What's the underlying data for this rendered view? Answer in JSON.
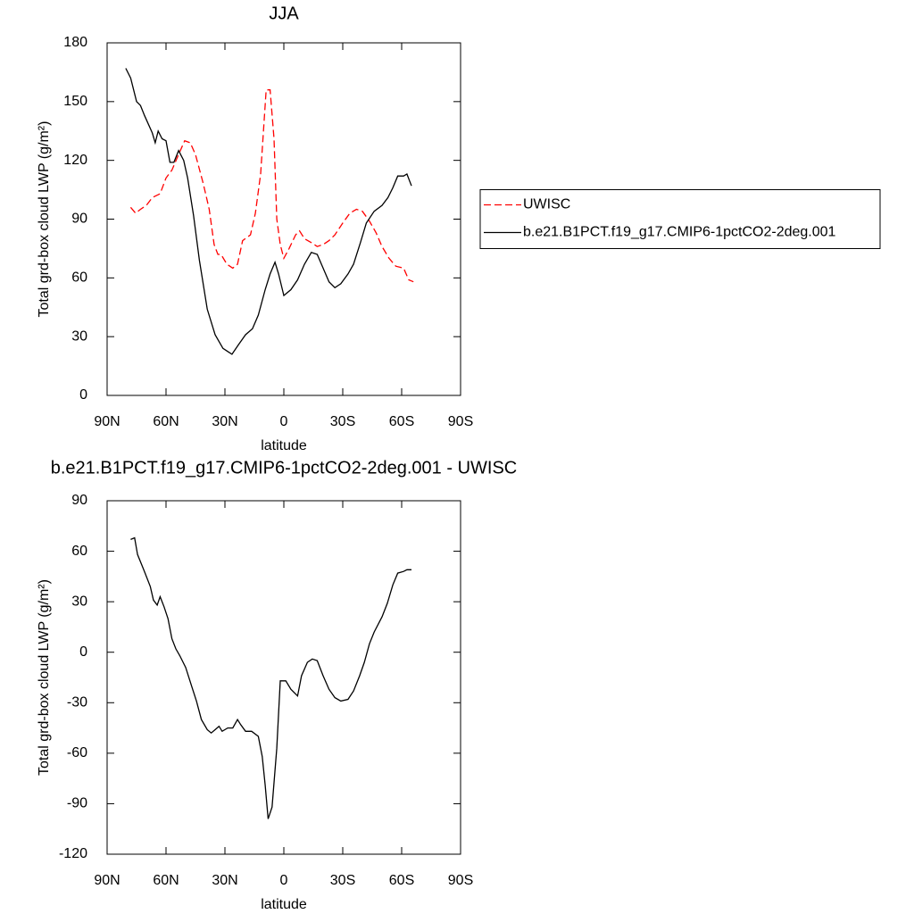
{
  "chart_data": [
    {
      "type": "line",
      "title": "JJA",
      "xlabel": "latitude",
      "ylabel": "Total grd-box cloud LWP (g/m²)",
      "xlim": [
        90,
        -90
      ],
      "xticks": [
        {
          "value": 90,
          "label": "90N"
        },
        {
          "value": 60,
          "label": "60N"
        },
        {
          "value": 30,
          "label": "30N"
        },
        0,
        {
          "value": -30,
          "label": "30S"
        },
        {
          "value": -60,
          "label": "60S"
        },
        {
          "value": -90,
          "label": "90S"
        }
      ],
      "ylim": [
        0,
        180
      ],
      "yticks": [
        0,
        30,
        60,
        90,
        120,
        150,
        180
      ],
      "legend": "right",
      "series": [
        {
          "name": "UWISC",
          "color": "#ff0000",
          "dash": true,
          "x": [
            78,
            75.5,
            73,
            70,
            67,
            63,
            60,
            57,
            53.6,
            50.5,
            47.7,
            45,
            41,
            38,
            35.5,
            33.6,
            32,
            29,
            26,
            23.6,
            21,
            17,
            14.5,
            11.8,
            9,
            7,
            5,
            3.6,
            1.8,
            0,
            -2.7,
            -6,
            -8,
            -10.5,
            -14,
            -17,
            -20,
            -23,
            -26,
            -30,
            -33.6,
            -37,
            -40,
            -43.6,
            -47,
            -50,
            -53.6,
            -57,
            -61,
            -63.6,
            -66
          ],
          "values": [
            96,
            93,
            95,
            97,
            101,
            103,
            111,
            115,
            123,
            130,
            129,
            123,
            108,
            95,
            77,
            72,
            72,
            67,
            65,
            67,
            79,
            82,
            93,
            113,
            156,
            156,
            131,
            90,
            77,
            70,
            75,
            82,
            84,
            80,
            78,
            76,
            77,
            79,
            82,
            88,
            93,
            95,
            94,
            89,
            83,
            76,
            70,
            66,
            65,
            59,
            58
          ]
        },
        {
          "name": "b.e21.B1PCT.f19_g17.CMIP6-1pctCO2-2deg.001",
          "color": "#000000",
          "dash": false,
          "x": [
            80.5,
            78,
            75,
            73,
            71,
            67,
            65.5,
            64,
            62,
            60,
            58,
            56,
            53.6,
            51,
            49,
            46,
            43,
            39,
            35,
            31,
            26.4,
            23,
            19.5,
            16,
            13,
            9.5,
            7,
            4.5,
            2.7,
            0,
            -3.6,
            -7,
            -10.5,
            -14,
            -17,
            -20,
            -23,
            -26,
            -29,
            -32.7,
            -35.5,
            -39,
            -42,
            -46,
            -50,
            -53,
            -55.5,
            -58,
            -61,
            -62.7,
            -65
          ],
          "values": [
            167,
            162,
            150,
            148,
            143,
            134,
            129,
            135,
            131,
            130,
            119,
            119,
            125,
            120,
            111,
            92,
            69,
            44,
            31,
            24,
            21,
            26,
            31,
            34,
            41,
            54,
            62,
            68,
            62,
            51,
            54,
            59,
            67,
            73,
            72,
            65,
            58,
            55,
            57,
            62,
            67,
            78,
            88,
            94,
            97,
            101,
            106,
            112,
            112,
            113,
            107
          ]
        }
      ]
    },
    {
      "type": "line",
      "title": "b.e21.B1PCT.f19_g17.CMIP6-1pctCO2-2deg.001 - UWISC",
      "xlabel": "latitude",
      "ylabel": "Total grd-box cloud LWP (g/m²)",
      "xlim": [
        90,
        -90
      ],
      "xticks": [
        {
          "value": 90,
          "label": "90N"
        },
        {
          "value": 60,
          "label": "60N"
        },
        {
          "value": 30,
          "label": "30N"
        },
        0,
        {
          "value": -30,
          "label": "30S"
        },
        {
          "value": -60,
          "label": "60S"
        },
        {
          "value": -90,
          "label": "90S"
        }
      ],
      "ylim": [
        -120,
        90
      ],
      "yticks": [
        -120,
        -90,
        -60,
        -30,
        0,
        30,
        60,
        90
      ],
      "series": [
        {
          "color": "#000000",
          "dash": false,
          "x": [
            78,
            76,
            74.5,
            71,
            68,
            66.4,
            64.5,
            63,
            61,
            59,
            57,
            55,
            53,
            50,
            47,
            44.5,
            42,
            39,
            37,
            35,
            33,
            31.4,
            28.6,
            26,
            23.6,
            22,
            19.5,
            16.4,
            13,
            11,
            9.5,
            8,
            6,
            3.6,
            1.8,
            -1,
            -3.6,
            -7,
            -9,
            -12,
            -14.5,
            -17,
            -20,
            -23,
            -26,
            -29,
            -32.7,
            -35.5,
            -38.6,
            -41,
            -43.6,
            -46,
            -50,
            -52.7,
            -55.5,
            -58,
            -61,
            -62.7,
            -65
          ],
          "values": [
            67,
            68,
            58,
            48,
            39,
            31,
            28,
            33,
            27,
            20,
            8,
            2,
            -2,
            -9,
            -20,
            -29,
            -40,
            -46,
            -48,
            -46,
            -44,
            -47,
            -45,
            -45,
            -40,
            -43,
            -47,
            -47,
            -50,
            -62,
            -79,
            -99,
            -92,
            -57,
            -17,
            -17,
            -22,
            -26,
            -14,
            -6,
            -4,
            -5,
            -14,
            -22,
            -27,
            -29,
            -28,
            -23,
            -14,
            -6,
            5,
            12,
            21,
            29,
            40,
            47,
            48,
            49,
            49
          ]
        }
      ]
    }
  ]
}
